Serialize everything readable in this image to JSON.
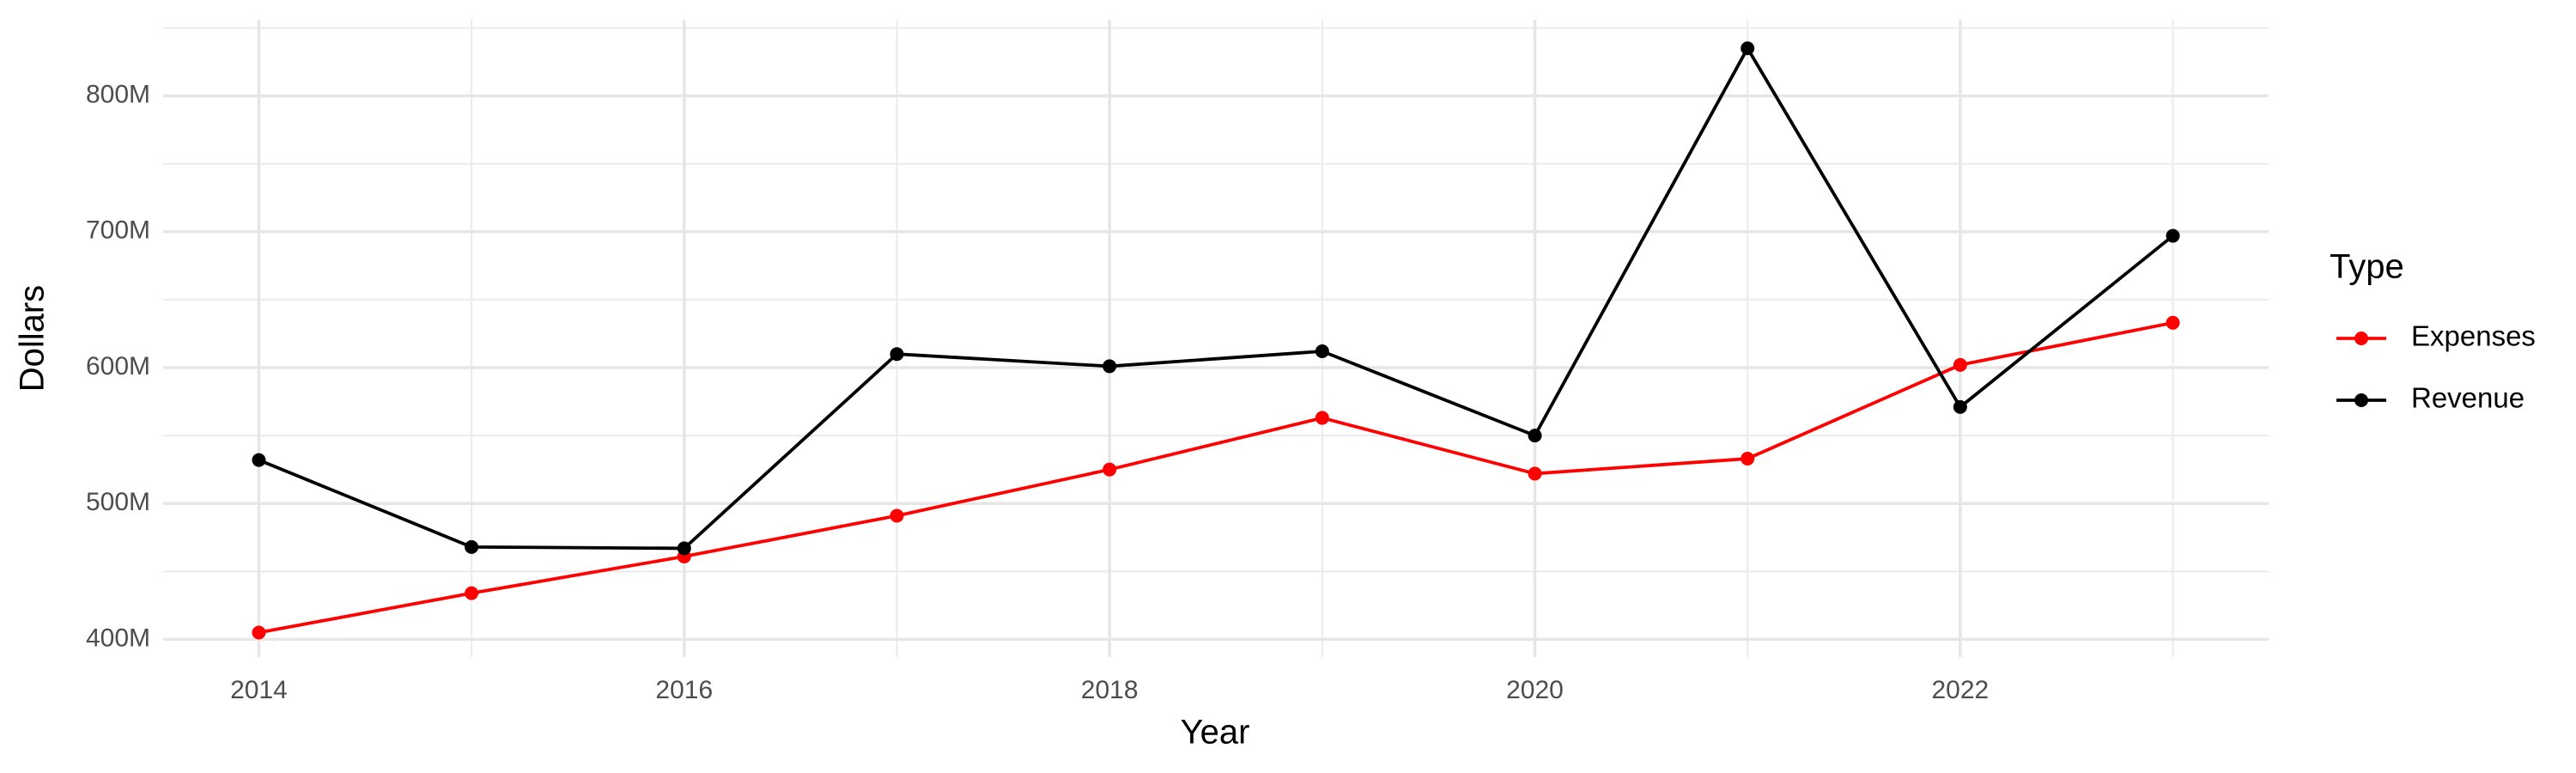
{
  "chart_data": {
    "type": "line",
    "x_label": "Year",
    "y_label": "Dollars",
    "legend_title": "Type",
    "legend_position": "right",
    "grid": true,
    "x": [
      2014,
      2015,
      2016,
      2017,
      2018,
      2019,
      2020,
      2021,
      2022,
      2023
    ],
    "series": [
      {
        "name": "Expenses",
        "color": "#ff0000",
        "values": [
          405000000,
          434000000,
          461000000,
          491000000,
          525000000,
          563000000,
          522000000,
          533000000,
          602000000,
          633000000
        ]
      },
      {
        "name": "Revenue",
        "color": "#000000",
        "values": [
          532000000,
          468000000,
          467000000,
          610000000,
          601000000,
          612000000,
          550000000,
          835000000,
          571000000,
          697000000
        ]
      }
    ],
    "xlim": [
      2013.55,
      2023.45
    ],
    "xticks": [
      2014,
      2016,
      2018,
      2020,
      2022
    ],
    "x_minor_ticks": [
      2015,
      2017,
      2019,
      2021,
      2023
    ],
    "ylim": [
      387000000,
      856000000
    ],
    "yticks": [
      {
        "value": 400000000,
        "label": "400M"
      },
      {
        "value": 500000000,
        "label": "500M"
      },
      {
        "value": 600000000,
        "label": "600M"
      },
      {
        "value": 700000000,
        "label": "700M"
      },
      {
        "value": 800000000,
        "label": "800M"
      }
    ],
    "y_minor_ticks": [
      450000000,
      550000000,
      650000000,
      750000000,
      850000000
    ]
  }
}
